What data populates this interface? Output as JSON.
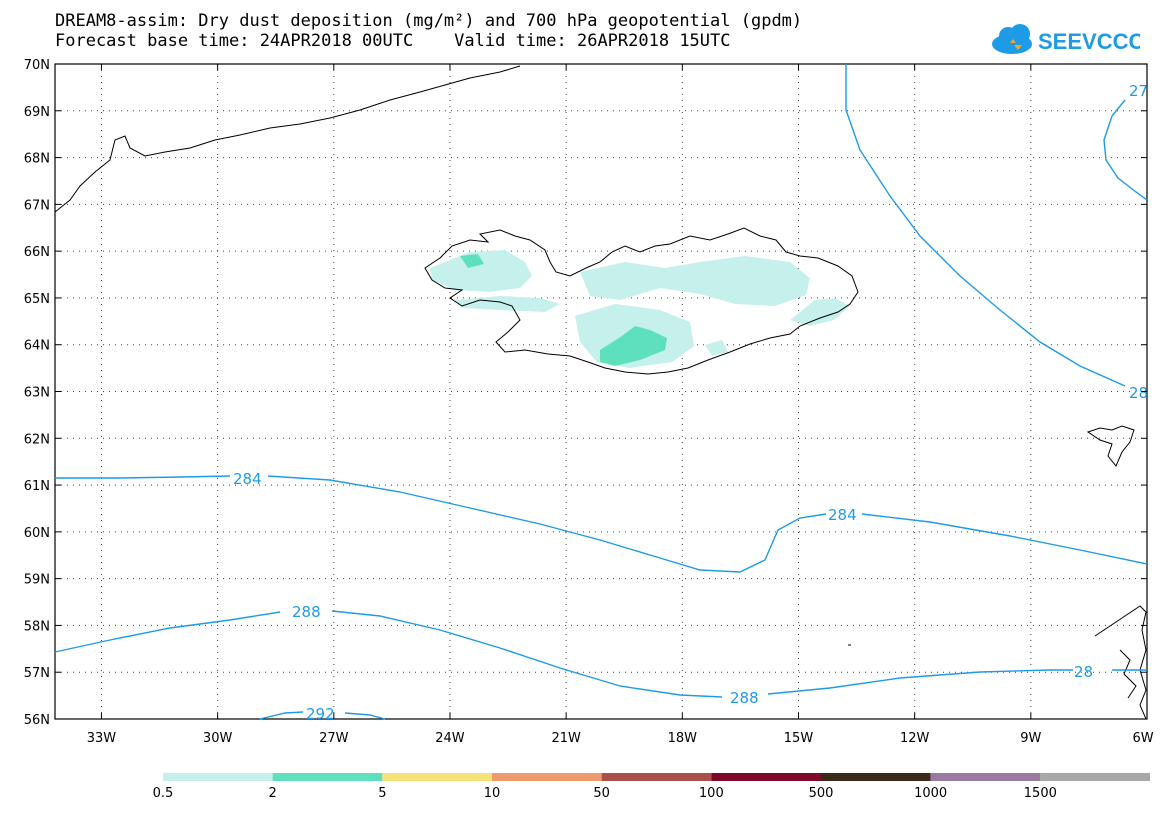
{
  "title": {
    "line1": "DREAM8-assim: Dry dust deposition (mg/m²) and 700 hPa geopotential (gpdm)",
    "line2": "Forecast base time: 24APR2018 00UTC    Valid time: 26APR2018 15UTC"
  },
  "logo": {
    "text": "SEEVCCC",
    "icon": "cloud-logo-icon",
    "color": "#1e9be6"
  },
  "map": {
    "lat_labels": [
      "70N",
      "69N",
      "68N",
      "67N",
      "66N",
      "65N",
      "64N",
      "63N",
      "62N",
      "61N",
      "60N",
      "59N",
      "58N",
      "57N",
      "56N"
    ],
    "lon_labels": [
      "33W",
      "30W",
      "27W",
      "24W",
      "21W",
      "18W",
      "15W",
      "12W",
      "9W",
      "6W"
    ],
    "contour_color": "#1e9be6",
    "contour_labels": [
      "27",
      "28",
      "284",
      "284",
      "288",
      "288",
      "28",
      "292"
    ]
  },
  "colorbar": {
    "colors": [
      "#c5f0eb",
      "#5ee0bd",
      "#f7e27a",
      "#ee9a6e",
      "#a8504a",
      "#7d0a2a",
      "#3b2a1a",
      "#9a7aa0",
      "#a8a8a8"
    ],
    "labels": [
      "0.5",
      "2",
      "5",
      "10",
      "50",
      "100",
      "500",
      "1000",
      "1500"
    ]
  }
}
